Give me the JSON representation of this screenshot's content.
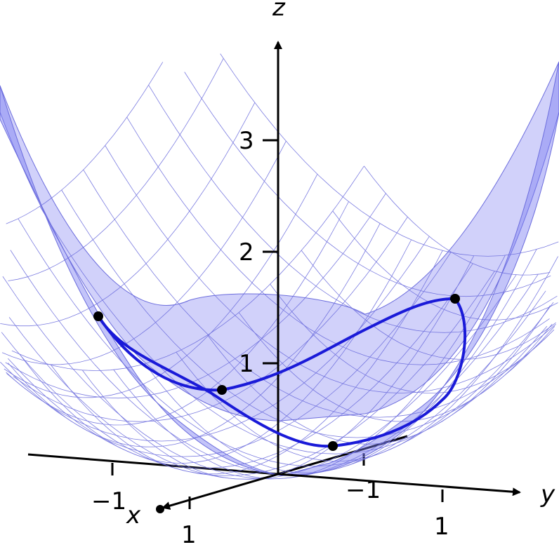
{
  "axes": {
    "x_label": "x",
    "y_label": "y",
    "z_label": "z",
    "z_ticks": [
      "1",
      "2",
      "3"
    ],
    "x_ticks": [
      "−1",
      "1"
    ],
    "y_ticks": [
      "−1",
      "1"
    ]
  },
  "surface": {
    "fill_color": "#7b7cf2",
    "mesh_color": "#6c6ddd"
  },
  "curve": {
    "color": "#1a1ad8",
    "point_color": "#000000",
    "point_count": 4
  }
}
